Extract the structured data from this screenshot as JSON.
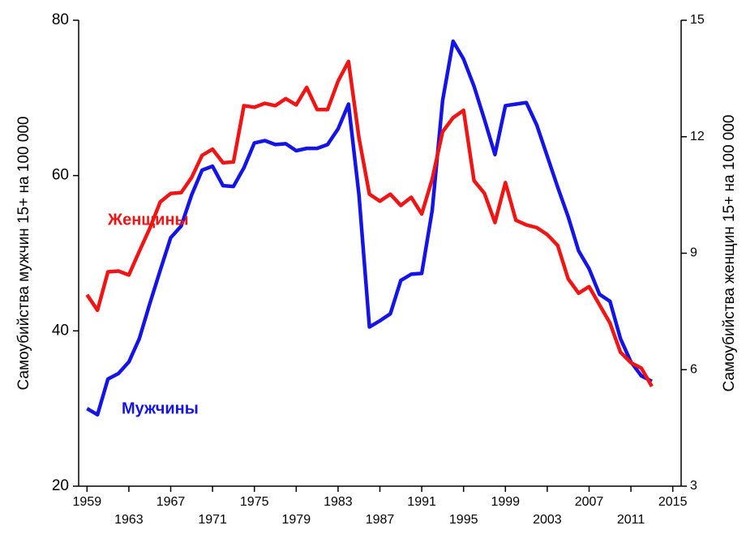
{
  "chart_data": {
    "type": "line",
    "ylabel": "Самоубийства мужчин 15+ на 100 000",
    "y2label": "Самоубийства женщин 15+ на 100 000",
    "x": [
      1959,
      1960,
      1961,
      1962,
      1963,
      1964,
      1965,
      1966,
      1967,
      1968,
      1969,
      1970,
      1971,
      1972,
      1973,
      1974,
      1975,
      1976,
      1977,
      1978,
      1979,
      1980,
      1981,
      1982,
      1983,
      1984,
      1985,
      1986,
      1987,
      1988,
      1989,
      1990,
      1991,
      1992,
      1993,
      1994,
      1995,
      1996,
      1997,
      1998,
      1999,
      2000,
      2001,
      2002,
      2003,
      2004,
      2005,
      2006,
      2007,
      2008,
      2009,
      2010,
      2011,
      2012,
      2013
    ],
    "xlim": [
      1958.2,
      2015.8
    ],
    "xticks": [
      1959,
      1963,
      1967,
      1971,
      1975,
      1979,
      1983,
      1987,
      1991,
      1995,
      1999,
      2003,
      2007,
      2011,
      2015
    ],
    "ylim": [
      20,
      80
    ],
    "yticks": [
      20,
      40,
      60,
      80
    ],
    "y2lim": [
      3,
      15
    ],
    "y2ticks": [
      3,
      6,
      9,
      12,
      15
    ],
    "series": [
      {
        "name": "Мужчины",
        "color": "#1414e6",
        "axis": "y",
        "values": [
          30,
          29.2,
          33.8,
          34.5,
          36,
          39,
          43.5,
          47.8,
          52,
          53.5,
          57.5,
          60.7,
          61.2,
          58.7,
          58.6,
          61,
          64.2,
          64.5,
          64,
          64.1,
          63.2,
          63.5,
          63.5,
          64,
          66,
          69.2,
          57.5,
          40.5,
          41.3,
          42.2,
          46.5,
          47.3,
          47.4,
          55.5,
          69.7,
          77.3,
          75,
          71.5,
          67.2,
          62.7,
          69,
          69.2,
          69.4,
          66.5,
          62.5,
          58.5,
          54.7,
          50.3,
          48,
          44.7,
          43.8,
          39,
          36,
          34.2,
          33.5
        ]
      },
      {
        "name": "Женщины",
        "color": "#f01414",
        "axis": "y2",
        "values": [
          7.93,
          7.53,
          8.52,
          8.54,
          8.44,
          9.05,
          9.64,
          10.32,
          10.54,
          10.56,
          10.95,
          11.52,
          11.68,
          11.33,
          11.35,
          12.8,
          12.76,
          12.86,
          12.8,
          12.98,
          12.82,
          13.27,
          12.7,
          12.7,
          13.43,
          13.94,
          11.97,
          10.52,
          10.34,
          10.52,
          10.23,
          10.44,
          10.01,
          10.91,
          12.13,
          12.49,
          12.68,
          10.87,
          10.54,
          9.79,
          10.82,
          9.85,
          9.73,
          9.66,
          9.48,
          9.2,
          8.34,
          7.97,
          8.14,
          7.67,
          7.2,
          6.45,
          6.18,
          6.04,
          5.57
        ]
      }
    ]
  }
}
